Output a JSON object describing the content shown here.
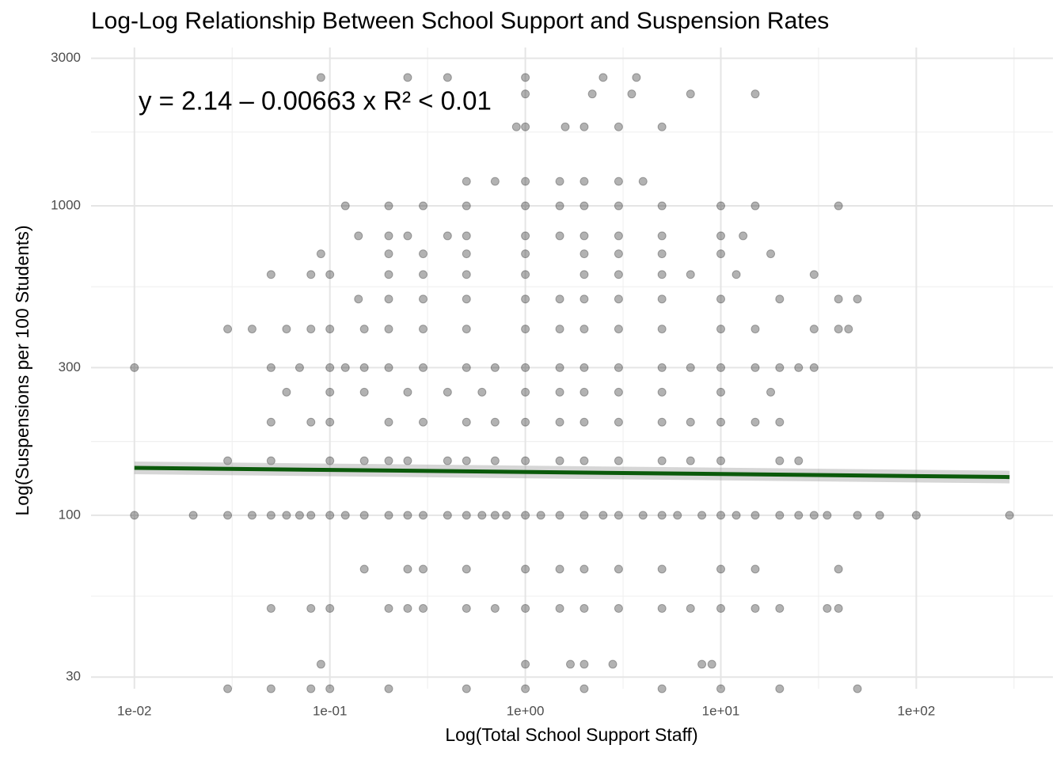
{
  "chart_data": {
    "type": "scatter",
    "title": "Log-Log Relationship Between School Support and Suspension Rates",
    "x_label": "Log(Total School Support Staff)",
    "y_label": "Log(Suspensions per 100 Students)",
    "annotation": "y = 2.14 – 0.00663 x   R² < 0.01",
    "log_x": true,
    "log_y": true,
    "grid": true,
    "xlim": [
      0.006,
      500
    ],
    "ylim": [
      27.5,
      3250
    ],
    "xticks": [
      {
        "value": 0.01,
        "label": "1e-02"
      },
      {
        "value": 0.1,
        "label": "1e-01"
      },
      {
        "value": 1,
        "label": "1e+00"
      },
      {
        "value": 10,
        "label": "1e+01"
      },
      {
        "value": 100,
        "label": "1e+02"
      }
    ],
    "yticks": [
      30,
      100,
      300,
      1000,
      3000
    ],
    "fit": {
      "x": [
        0.01,
        300
      ],
      "intercept": 2.14,
      "slope": -0.00663,
      "color": "#0b5a0b"
    },
    "series": [
      {
        "color": "#000000",
        "x": [
          0.01,
          0.02,
          0.03,
          0.04,
          0.05,
          0.06,
          0.07,
          0.08,
          0.1,
          0.12,
          0.15,
          0.2,
          0.25,
          0.3,
          0.4,
          0.5,
          0.6,
          0.7,
          0.8,
          1,
          1.2,
          1.5,
          2,
          2.5,
          3,
          4,
          5,
          6,
          8,
          10,
          12,
          15,
          20,
          25,
          30,
          35,
          50,
          65,
          100,
          300,
          0.05,
          0.08,
          0.1,
          0.2,
          0.25,
          0.3,
          0.5,
          0.7,
          1,
          1.5,
          2,
          3,
          5,
          7,
          10,
          15,
          20,
          35,
          40,
          0.03,
          0.05,
          0.08,
          0.1,
          0.2,
          0.5,
          1,
          2,
          5,
          10,
          20,
          50,
          0.09,
          1,
          1.7,
          2,
          2.8,
          8,
          9,
          0.15,
          0.25,
          0.3,
          0.5,
          1,
          1.5,
          2,
          3,
          5,
          10,
          15,
          40,
          0.03,
          0.05,
          0.1,
          0.15,
          0.2,
          0.25,
          0.4,
          0.5,
          0.7,
          1,
          1.5,
          2,
          3,
          5,
          7,
          10,
          20,
          25,
          0.05,
          0.08,
          0.1,
          0.2,
          0.3,
          0.5,
          0.7,
          1,
          1.5,
          2,
          3,
          5,
          7,
          10,
          15,
          20,
          0.06,
          0.1,
          0.15,
          0.25,
          0.4,
          0.6,
          1,
          1.5,
          2,
          3,
          5,
          10,
          18,
          0.01,
          0.05,
          0.07,
          0.1,
          0.12,
          0.15,
          0.2,
          0.3,
          0.5,
          0.7,
          1,
          1.5,
          2,
          3,
          5,
          7,
          10,
          15,
          20,
          25,
          30,
          0.03,
          0.04,
          0.06,
          0.08,
          0.1,
          0.15,
          0.2,
          0.3,
          0.5,
          1,
          1.5,
          2,
          3,
          5,
          10,
          15,
          30,
          40,
          45,
          0.14,
          0.2,
          0.3,
          0.5,
          1,
          1.5,
          2,
          3,
          5,
          10,
          20,
          40,
          50,
          0.05,
          0.08,
          0.1,
          0.2,
          0.3,
          0.5,
          1,
          2,
          3,
          5,
          7,
          12,
          30,
          0.09,
          0.2,
          0.3,
          0.5,
          1,
          2,
          3,
          5,
          10,
          18,
          0.14,
          0.2,
          0.25,
          0.4,
          0.5,
          1,
          1.5,
          2,
          3,
          5,
          10,
          13,
          0.12,
          0.2,
          0.3,
          0.5,
          1,
          1.5,
          2,
          3,
          5,
          10,
          15,
          40,
          0.5,
          0.7,
          1,
          1.5,
          2,
          3,
          4,
          0.9,
          1,
          1.6,
          2,
          3,
          5,
          1,
          2.2,
          3.5,
          7,
          15,
          0.09,
          0.25,
          0.4,
          1,
          2.5,
          3.7
        ],
        "y": [
          100,
          100,
          100,
          100,
          100,
          100,
          100,
          100,
          100,
          100,
          100,
          100,
          100,
          100,
          100,
          100,
          100,
          100,
          100,
          100,
          100,
          100,
          100,
          100,
          100,
          100,
          100,
          100,
          100,
          100,
          100,
          100,
          100,
          100,
          100,
          100,
          100,
          100,
          100,
          100,
          50,
          50,
          50,
          50,
          50,
          50,
          50,
          50,
          50,
          50,
          50,
          50,
          50,
          50,
          50,
          50,
          50,
          50,
          50,
          27.5,
          27.5,
          27.5,
          27.5,
          27.5,
          27.5,
          27.5,
          27.5,
          27.5,
          27.5,
          27.5,
          27.5,
          33,
          33,
          33,
          33,
          33,
          33,
          33,
          67,
          67,
          67,
          67,
          67,
          67,
          67,
          67,
          67,
          67,
          67,
          67,
          150,
          150,
          150,
          150,
          150,
          150,
          150,
          150,
          150,
          150,
          150,
          150,
          150,
          150,
          150,
          150,
          150,
          150,
          200,
          200,
          200,
          200,
          200,
          200,
          200,
          200,
          200,
          200,
          200,
          200,
          200,
          200,
          200,
          200,
          250,
          250,
          250,
          250,
          250,
          250,
          250,
          250,
          250,
          250,
          250,
          250,
          250,
          300,
          300,
          300,
          300,
          300,
          300,
          300,
          300,
          300,
          300,
          300,
          300,
          300,
          300,
          300,
          300,
          300,
          300,
          300,
          300,
          300,
          400,
          400,
          400,
          400,
          400,
          400,
          400,
          400,
          400,
          400,
          400,
          400,
          400,
          400,
          400,
          400,
          400,
          400,
          400,
          500,
          500,
          500,
          500,
          500,
          500,
          500,
          500,
          500,
          500,
          500,
          500,
          500,
          600,
          600,
          600,
          600,
          600,
          600,
          600,
          600,
          600,
          600,
          600,
          600,
          600,
          700,
          700,
          700,
          700,
          700,
          700,
          700,
          700,
          700,
          700,
          800,
          800,
          800,
          800,
          800,
          800,
          800,
          800,
          800,
          800,
          800,
          800,
          1000,
          1000,
          1000,
          1000,
          1000,
          1000,
          1000,
          1000,
          1000,
          1000,
          1000,
          1000,
          1200,
          1200,
          1200,
          1200,
          1200,
          1200,
          1200,
          1800,
          1800,
          1800,
          1800,
          1800,
          1800,
          2300,
          2300,
          2300,
          2300,
          2300,
          2600,
          2600,
          2600,
          2600,
          2600,
          2600
        ]
      }
    ]
  }
}
